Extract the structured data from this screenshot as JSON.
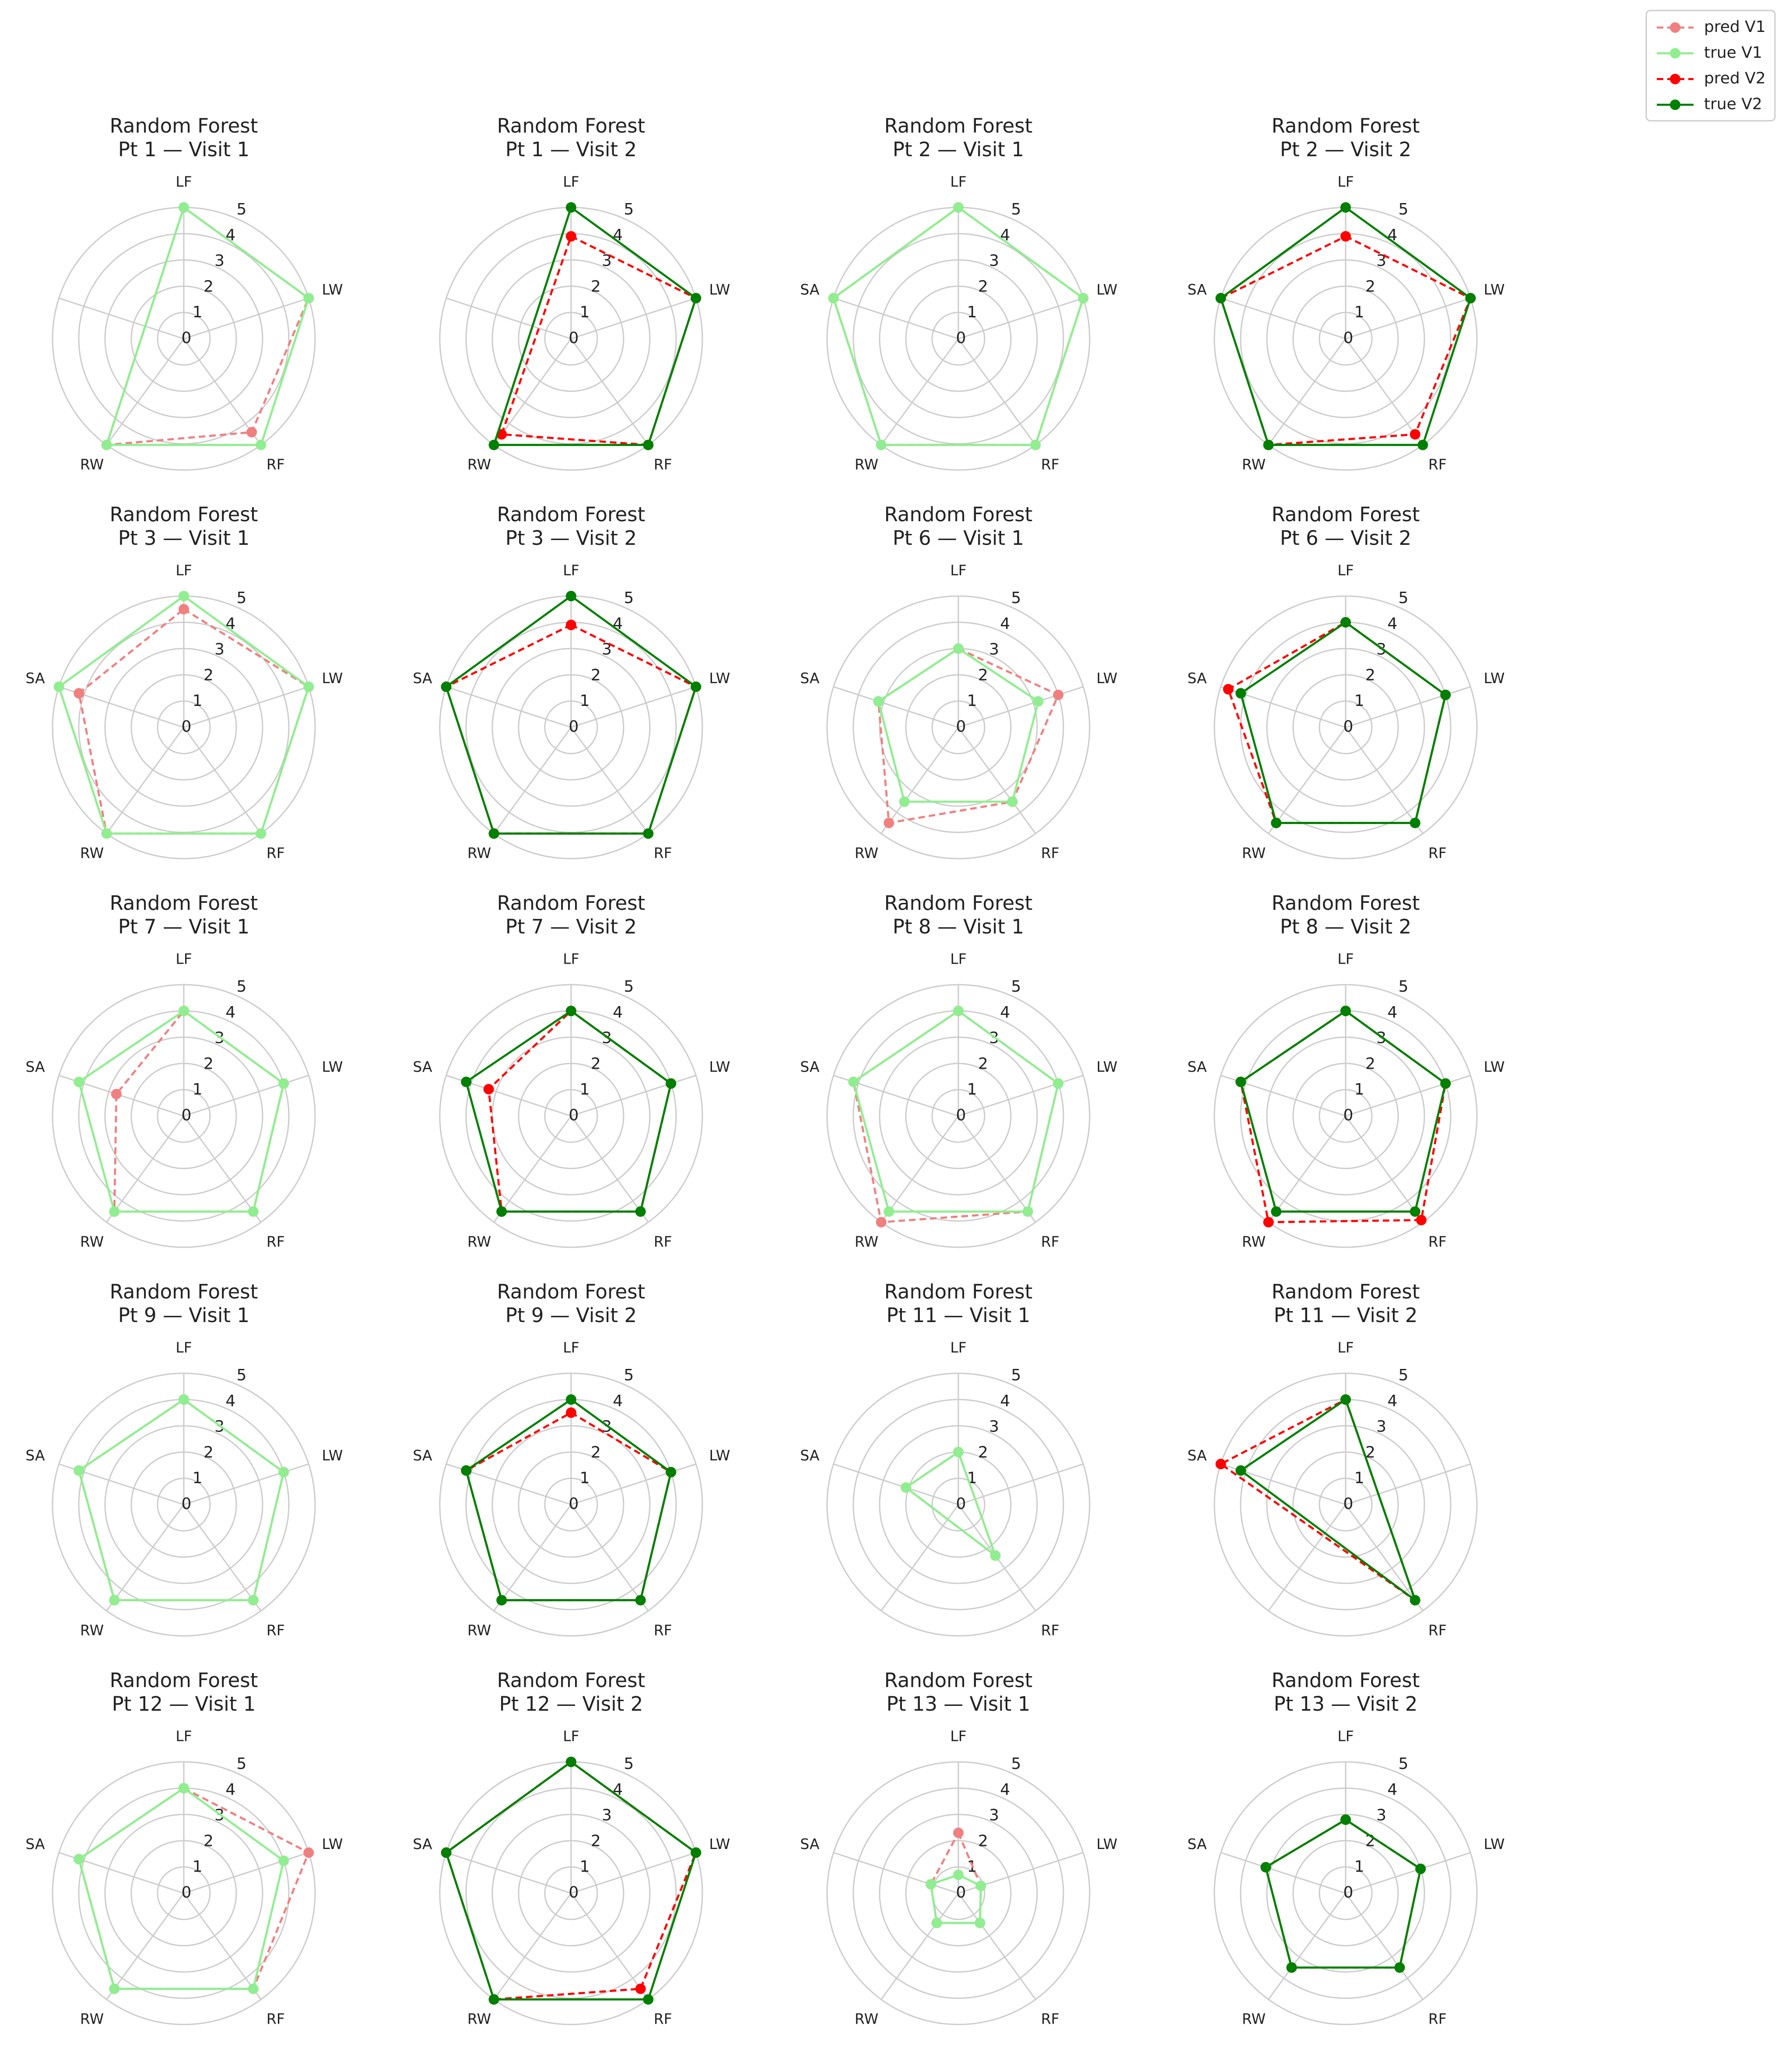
{
  "chart_data": [
    {
      "type": "radar",
      "title": "Random Forest",
      "subtitle": "Pt 1 — Visit 1",
      "categories": [
        "LF",
        "LW",
        "RF",
        "RW",
        null
      ],
      "rlim": [
        0,
        5
      ],
      "rticks": [
        0,
        1,
        2,
        3,
        4,
        5
      ],
      "series": [
        {
          "name": "pred V1",
          "color": "#f08080",
          "dashed": true,
          "values": [
            5,
            5,
            4.4,
            5,
            null
          ]
        },
        {
          "name": "true V1",
          "color": "#90ee90",
          "dashed": false,
          "values": [
            5,
            5,
            5,
            5,
            null
          ]
        }
      ]
    },
    {
      "type": "radar",
      "title": "Random Forest",
      "subtitle": "Pt 1 — Visit 2",
      "categories": [
        "LF",
        "LW",
        "RF",
        "RW",
        null
      ],
      "rlim": [
        0,
        5
      ],
      "rticks": [
        0,
        1,
        2,
        3,
        4,
        5
      ],
      "series": [
        {
          "name": "pred V2",
          "color": "#ff0000",
          "dashed": true,
          "values": [
            3.9,
            5,
            5,
            4.5,
            null
          ]
        },
        {
          "name": "true V2",
          "color": "#008000",
          "dashed": false,
          "values": [
            5,
            5,
            5,
            5,
            null
          ]
        }
      ]
    },
    {
      "type": "radar",
      "title": "Random Forest",
      "subtitle": "Pt 2 — Visit 1",
      "categories": [
        "LF",
        "LW",
        "RF",
        "RW",
        "SA"
      ],
      "rlim": [
        0,
        5
      ],
      "rticks": [
        0,
        1,
        2,
        3,
        4,
        5
      ],
      "series": [
        {
          "name": "pred V1",
          "color": "#f08080",
          "dashed": true,
          "values": [
            5,
            5,
            5,
            5,
            5
          ]
        },
        {
          "name": "true V1",
          "color": "#90ee90",
          "dashed": false,
          "values": [
            5,
            5,
            5,
            5,
            5
          ]
        }
      ]
    },
    {
      "type": "radar",
      "title": "Random Forest",
      "subtitle": "Pt 2 — Visit 2",
      "categories": [
        "LF",
        "LW",
        "RF",
        "RW",
        "SA"
      ],
      "rlim": [
        0,
        5
      ],
      "rticks": [
        0,
        1,
        2,
        3,
        4,
        5
      ],
      "series": [
        {
          "name": "pred V2",
          "color": "#ff0000",
          "dashed": true,
          "values": [
            3.9,
            5,
            4.5,
            5,
            5
          ]
        },
        {
          "name": "true V2",
          "color": "#008000",
          "dashed": false,
          "values": [
            5,
            5,
            5,
            5,
            5
          ]
        }
      ]
    },
    {
      "type": "radar",
      "title": "Random Forest",
      "subtitle": "Pt 3 — Visit 1",
      "categories": [
        "LF",
        "LW",
        "RF",
        "RW",
        "SA"
      ],
      "rlim": [
        0,
        5
      ],
      "rticks": [
        0,
        1,
        2,
        3,
        4,
        5
      ],
      "series": [
        {
          "name": "pred V1",
          "color": "#f08080",
          "dashed": true,
          "values": [
            4.5,
            5,
            5,
            5,
            4.2
          ]
        },
        {
          "name": "true V1",
          "color": "#90ee90",
          "dashed": false,
          "values": [
            5,
            5,
            5,
            5,
            5
          ]
        }
      ]
    },
    {
      "type": "radar",
      "title": "Random Forest",
      "subtitle": "Pt 3 — Visit 2",
      "categories": [
        "LF",
        "LW",
        "RF",
        "RW",
        "SA"
      ],
      "rlim": [
        0,
        5
      ],
      "rticks": [
        0,
        1,
        2,
        3,
        4,
        5
      ],
      "series": [
        {
          "name": "pred V2",
          "color": "#ff0000",
          "dashed": true,
          "values": [
            3.9,
            5,
            5,
            5,
            5
          ]
        },
        {
          "name": "true V2",
          "color": "#008000",
          "dashed": false,
          "values": [
            5,
            5,
            5,
            5,
            5
          ]
        }
      ]
    },
    {
      "type": "radar",
      "title": "Random Forest",
      "subtitle": "Pt 6 — Visit 1",
      "categories": [
        "LF",
        "LW",
        "RF",
        "RW",
        "SA"
      ],
      "rlim": [
        0,
        5
      ],
      "rticks": [
        0,
        1,
        2,
        3,
        4,
        5
      ],
      "series": [
        {
          "name": "pred V1",
          "color": "#f08080",
          "dashed": true,
          "values": [
            3,
            4,
            3.5,
            4.5,
            3.2
          ]
        },
        {
          "name": "true V1",
          "color": "#90ee90",
          "dashed": false,
          "values": [
            3,
            3.2,
            3.5,
            3.5,
            3.2
          ]
        }
      ]
    },
    {
      "type": "radar",
      "title": "Random Forest",
      "subtitle": "Pt 6 — Visit 2",
      "categories": [
        "LF",
        "LW",
        "RF",
        "RW",
        "SA"
      ],
      "rlim": [
        0,
        5
      ],
      "rticks": [
        0,
        1,
        2,
        3,
        4,
        5
      ],
      "series": [
        {
          "name": "pred V2",
          "color": "#ff0000",
          "dashed": true,
          "values": [
            4,
            4,
            4.5,
            4.5,
            4.7
          ]
        },
        {
          "name": "true V2",
          "color": "#008000",
          "dashed": false,
          "values": [
            4,
            4,
            4.5,
            4.5,
            4.2
          ]
        }
      ]
    },
    {
      "type": "radar",
      "title": "Random Forest",
      "subtitle": "Pt 7 — Visit 1",
      "categories": [
        "LF",
        "LW",
        "RF",
        "RW",
        "SA"
      ],
      "rlim": [
        0,
        5
      ],
      "rticks": [
        0,
        1,
        2,
        3,
        4,
        5
      ],
      "series": [
        {
          "name": "pred V1",
          "color": "#f08080",
          "dashed": true,
          "values": [
            4,
            4,
            4.5,
            4.5,
            2.7
          ]
        },
        {
          "name": "true V1",
          "color": "#90ee90",
          "dashed": false,
          "values": [
            4,
            4,
            4.5,
            4.5,
            4.2
          ]
        }
      ]
    },
    {
      "type": "radar",
      "title": "Random Forest",
      "subtitle": "Pt 7 — Visit 2",
      "categories": [
        "LF",
        "LW",
        "RF",
        "RW",
        "SA"
      ],
      "rlim": [
        0,
        5
      ],
      "rticks": [
        0,
        1,
        2,
        3,
        4,
        5
      ],
      "series": [
        {
          "name": "pred V2",
          "color": "#ff0000",
          "dashed": true,
          "values": [
            4,
            4,
            4.5,
            4.5,
            3.3
          ]
        },
        {
          "name": "true V2",
          "color": "#008000",
          "dashed": false,
          "values": [
            4,
            4,
            4.5,
            4.5,
            4.2
          ]
        }
      ]
    },
    {
      "type": "radar",
      "title": "Random Forest",
      "subtitle": "Pt 8 — Visit 1",
      "categories": [
        "LF",
        "LW",
        "RF",
        "RW",
        "SA"
      ],
      "rlim": [
        0,
        5
      ],
      "rticks": [
        0,
        1,
        2,
        3,
        4,
        5
      ],
      "series": [
        {
          "name": "pred V1",
          "color": "#f08080",
          "dashed": true,
          "values": [
            4,
            4,
            4.5,
            5,
            4.2
          ]
        },
        {
          "name": "true V1",
          "color": "#90ee90",
          "dashed": false,
          "values": [
            4,
            4,
            4.5,
            4.5,
            4.2
          ]
        }
      ]
    },
    {
      "type": "radar",
      "title": "Random Forest",
      "subtitle": "Pt 8 — Visit 2",
      "categories": [
        "LF",
        "LW",
        "RF",
        "RW",
        "SA"
      ],
      "rlim": [
        0,
        5
      ],
      "rticks": [
        0,
        1,
        2,
        3,
        4,
        5
      ],
      "series": [
        {
          "name": "pred V2",
          "color": "#ff0000",
          "dashed": true,
          "values": [
            4,
            4,
            4.9,
            5,
            4.2
          ]
        },
        {
          "name": "true V2",
          "color": "#008000",
          "dashed": false,
          "values": [
            4,
            4,
            4.5,
            4.5,
            4.2
          ]
        }
      ]
    },
    {
      "type": "radar",
      "title": "Random Forest",
      "subtitle": "Pt 9 — Visit 1",
      "categories": [
        "LF",
        "LW",
        "RF",
        "RW",
        "SA"
      ],
      "rlim": [
        0,
        5
      ],
      "rticks": [
        0,
        1,
        2,
        3,
        4,
        5
      ],
      "series": [
        {
          "name": "pred V1",
          "color": "#f08080",
          "dashed": true,
          "values": [
            4,
            4,
            4.5,
            4.5,
            4.2
          ]
        },
        {
          "name": "true V1",
          "color": "#90ee90",
          "dashed": false,
          "values": [
            4,
            4,
            4.5,
            4.5,
            4.2
          ]
        }
      ]
    },
    {
      "type": "radar",
      "title": "Random Forest",
      "subtitle": "Pt 9 — Visit 2",
      "categories": [
        "LF",
        "LW",
        "RF",
        "RW",
        "SA"
      ],
      "rlim": [
        0,
        5
      ],
      "rticks": [
        0,
        1,
        2,
        3,
        4,
        5
      ],
      "series": [
        {
          "name": "pred V2",
          "color": "#ff0000",
          "dashed": true,
          "values": [
            3.5,
            4,
            4.5,
            4.5,
            4.2
          ]
        },
        {
          "name": "true V2",
          "color": "#008000",
          "dashed": false,
          "values": [
            4,
            4,
            4.5,
            4.5,
            4.2
          ]
        }
      ]
    },
    {
      "type": "radar",
      "title": "Random Forest",
      "subtitle": "Pt 11 — Visit 1",
      "categories": [
        "LF",
        null,
        "RF",
        null,
        "SA"
      ],
      "rlim": [
        0,
        5
      ],
      "rticks": [
        0,
        1,
        2,
        3,
        4,
        5
      ],
      "series": [
        {
          "name": "pred V1",
          "color": "#f08080",
          "dashed": true,
          "values": [
            2,
            null,
            2.4,
            null,
            2.1
          ]
        },
        {
          "name": "true V1",
          "color": "#90ee90",
          "dashed": false,
          "values": [
            2,
            null,
            2.4,
            null,
            2.1
          ]
        }
      ]
    },
    {
      "type": "radar",
      "title": "Random Forest",
      "subtitle": "Pt 11 — Visit 2",
      "categories": [
        "LF",
        null,
        "RF",
        null,
        "SA"
      ],
      "rlim": [
        0,
        5
      ],
      "rticks": [
        0,
        1,
        2,
        3,
        4,
        5
      ],
      "series": [
        {
          "name": "pred V2",
          "color": "#ff0000",
          "dashed": true,
          "values": [
            4,
            null,
            4.5,
            null,
            5
          ]
        },
        {
          "name": "true V2",
          "color": "#008000",
          "dashed": false,
          "values": [
            4,
            null,
            4.5,
            null,
            4.2
          ]
        }
      ]
    },
    {
      "type": "radar",
      "title": "Random Forest",
      "subtitle": "Pt 12 — Visit 1",
      "categories": [
        "LF",
        "LW",
        "RF",
        "RW",
        "SA"
      ],
      "rlim": [
        0,
        5
      ],
      "rticks": [
        0,
        1,
        2,
        3,
        4,
        5
      ],
      "series": [
        {
          "name": "pred V1",
          "color": "#f08080",
          "dashed": true,
          "values": [
            4,
            5,
            4.5,
            4.5,
            4.2
          ]
        },
        {
          "name": "true V1",
          "color": "#90ee90",
          "dashed": false,
          "values": [
            4,
            4,
            4.5,
            4.5,
            4.2
          ]
        }
      ]
    },
    {
      "type": "radar",
      "title": "Random Forest",
      "subtitle": "Pt 12 — Visit 2",
      "categories": [
        "LF",
        "LW",
        "RF",
        "RW",
        "SA"
      ],
      "rlim": [
        0,
        5
      ],
      "rticks": [
        0,
        1,
        2,
        3,
        4,
        5
      ],
      "series": [
        {
          "name": "pred V2",
          "color": "#ff0000",
          "dashed": true,
          "values": [
            5,
            5,
            4.5,
            5,
            5
          ]
        },
        {
          "name": "true V2",
          "color": "#008000",
          "dashed": false,
          "values": [
            5,
            5,
            5,
            5,
            5
          ]
        }
      ]
    },
    {
      "type": "radar",
      "title": "Random Forest",
      "subtitle": "Pt 13 — Visit 1",
      "categories": [
        "LF",
        "LW",
        "RF",
        "RW",
        "SA"
      ],
      "rlim": [
        0,
        5
      ],
      "rticks": [
        0,
        1,
        2,
        3,
        4,
        5
      ],
      "series": [
        {
          "name": "pred V1",
          "color": "#f08080",
          "dashed": true,
          "values": [
            2.3,
            0.9,
            1.4,
            1.4,
            1.1
          ]
        },
        {
          "name": "true V1",
          "color": "#90ee90",
          "dashed": false,
          "values": [
            0.7,
            0.9,
            1.4,
            1.4,
            1.1
          ]
        }
      ]
    },
    {
      "type": "radar",
      "title": "Random Forest",
      "subtitle": "Pt 13 — Visit 2",
      "categories": [
        "LF",
        "LW",
        "RF",
        "RW",
        "SA"
      ],
      "rlim": [
        0,
        5
      ],
      "rticks": [
        0,
        1,
        2,
        3,
        4,
        5
      ],
      "series": [
        {
          "name": "pred V2",
          "color": "#ff0000",
          "dashed": true,
          "values": [
            2.8,
            3,
            3.5,
            3.5,
            3.2
          ]
        },
        {
          "name": "true V2",
          "color": "#008000",
          "dashed": false,
          "values": [
            2.8,
            3,
            3.5,
            3.5,
            3.2
          ]
        }
      ]
    }
  ]
}
